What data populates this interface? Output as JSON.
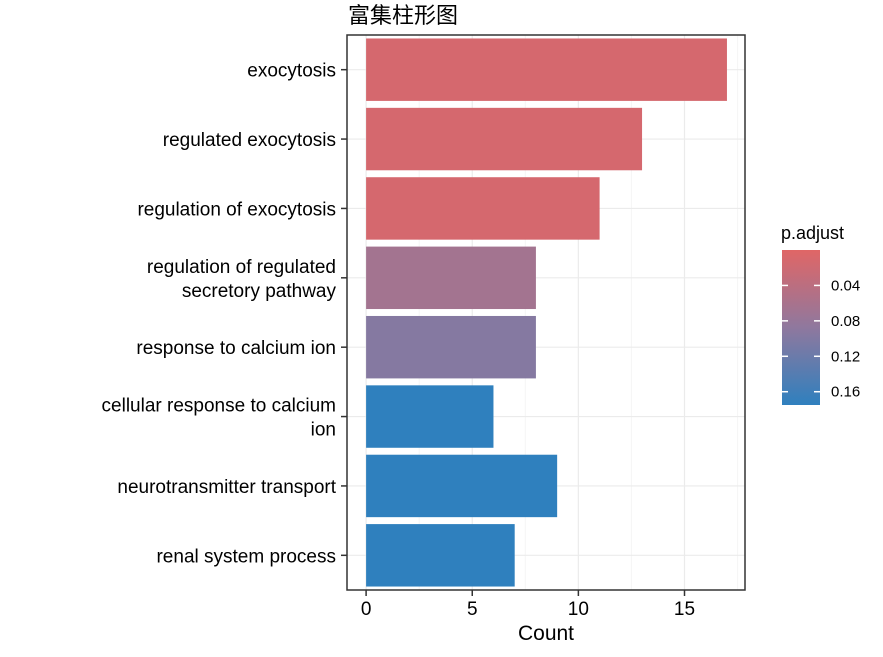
{
  "chart_data": {
    "type": "bar",
    "orientation": "horizontal",
    "title": "富集柱形图",
    "xlabel": "Count",
    "ylabel": "",
    "categories": [
      "exocytosis",
      "regulated exocytosis",
      "regulation of exocytosis",
      "regulation of regulated secretory pathway",
      "response to calcium ion",
      "cellular response to calcium ion",
      "neurotransmitter transport",
      "renal system process"
    ],
    "category_lines": [
      [
        "exocytosis"
      ],
      [
        "regulated exocytosis"
      ],
      [
        "regulation of exocytosis"
      ],
      [
        "regulation of regulated",
        "secretory pathway"
      ],
      [
        "response to calcium ion"
      ],
      [
        "cellular response to calcium",
        "ion"
      ],
      [
        "neurotransmitter transport"
      ],
      [
        "renal system process"
      ]
    ],
    "values": [
      17,
      13,
      11,
      8,
      8,
      6,
      9,
      7
    ],
    "p_adjust": [
      0.012,
      0.012,
      0.012,
      0.066,
      0.097,
      0.175,
      0.175,
      0.175
    ],
    "xlim": [
      -0.9,
      17.85
    ],
    "xticks": [
      0,
      5,
      10,
      15
    ],
    "xtick_labels": [
      "0",
      "5",
      "10",
      "15"
    ],
    "grid": true,
    "legend": {
      "title": "p.adjust",
      "placement": "right",
      "ticks": [
        0.04,
        0.08,
        0.12,
        0.16
      ],
      "tick_labels": [
        "0.04",
        "0.08",
        "0.12",
        "0.16"
      ],
      "range": [
        0.0,
        0.175
      ],
      "color_low": "#E06666",
      "color_mid": "#8F789E",
      "color_high": "#2F80BE"
    }
  },
  "colors": {
    "panel_border": "#333333",
    "grid_major": "#EBEBEB",
    "grid_minor": "#F5F5F5",
    "axis_tick": "#333333"
  }
}
